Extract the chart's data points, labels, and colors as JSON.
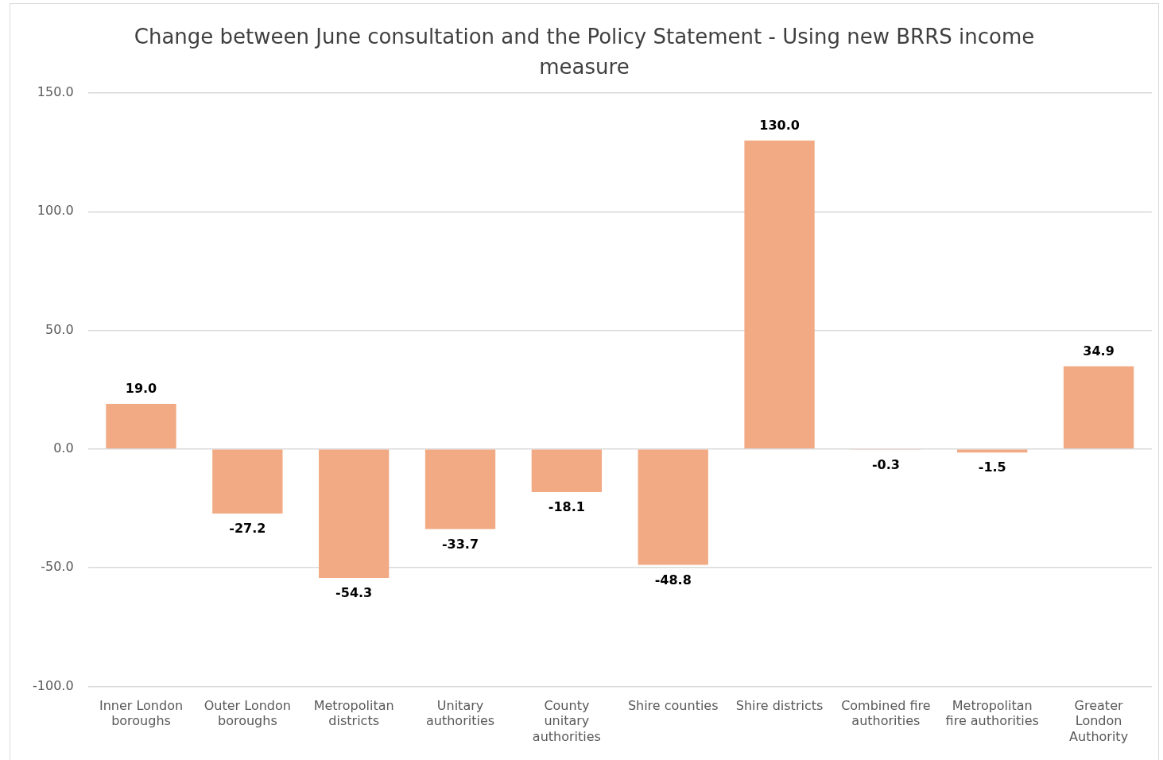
{
  "chart_data": {
    "type": "bar",
    "title": "Change between June consultation and the Policy Statement - Using new BRRS income measure",
    "categories": [
      "Inner London boroughs",
      "Outer London boroughs",
      "Metropolitan districts",
      "Unitary authorities",
      "County unitary authorities",
      "Shire counties",
      "Shire districts",
      "Combined fire authorities",
      "Metropolitan fire authorities",
      "Greater London Authority"
    ],
    "values": [
      19.0,
      -27.2,
      -54.3,
      -33.7,
      -18.1,
      -48.8,
      130.0,
      -0.3,
      -1.5,
      34.9
    ],
    "value_labels": [
      "19.0",
      "-27.2",
      "-54.3",
      "-33.7",
      "-18.1",
      "-48.8",
      "130.0",
      "-0.3",
      "-1.5",
      "34.9"
    ],
    "color": "#f1aa84",
    "ylim": [
      -100,
      150
    ],
    "yticks": [
      {
        "value": -100,
        "label": "-100.0"
      },
      {
        "value": -50,
        "label": "-50.0"
      },
      {
        "value": 0,
        "label": "0.0"
      },
      {
        "value": 50,
        "label": "50.0"
      },
      {
        "value": 100,
        "label": "100.0"
      },
      {
        "value": 150,
        "label": "150.0"
      }
    ],
    "grid": "y",
    "legend": false
  }
}
